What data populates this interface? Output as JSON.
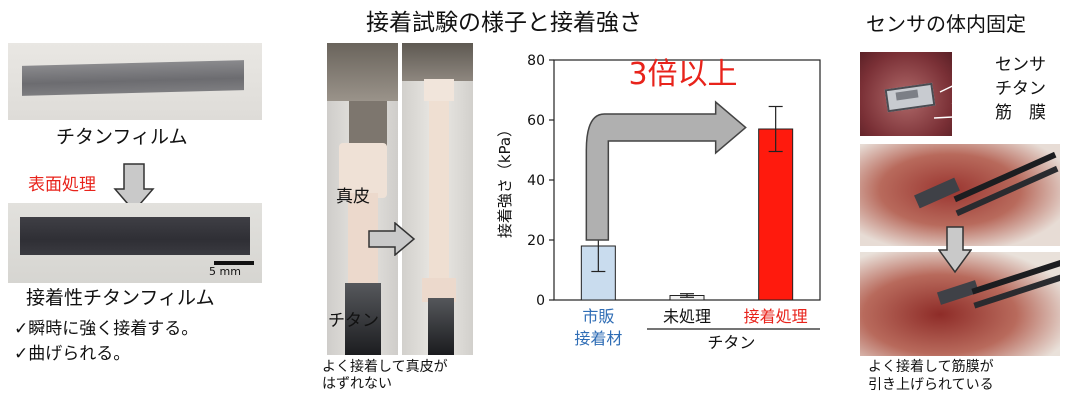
{
  "left_panel": {
    "film_label": "チタンフィルム",
    "treatment_label": "表面処理",
    "scale_label": "5 mm",
    "adhesive_film_label": "接着性チタンフィルム",
    "bullet_1": "✓瞬時に強く接着する。",
    "bullet_2": "✓曲げられる。"
  },
  "center_panel": {
    "title": "接着試験の様子と接着強さ",
    "dermis_label": "真皮",
    "titanium_label": "チタン",
    "caption_line1": "よく接着して真皮が",
    "caption_line2": "はずれない"
  },
  "right_panel": {
    "title": "センサの体内固定",
    "sensor_label": "センサ",
    "titanium_label": "チタン",
    "fascia_label": "筋　膜",
    "caption_line1": "よく接着して筋膜が",
    "caption_line2": "引き上げられている"
  },
  "chart_data": {
    "type": "bar",
    "ylabel": "接着強さ（kPa）",
    "ylim": [
      0,
      80
    ],
    "yticks": [
      0,
      20,
      40,
      60,
      80
    ],
    "categories": [
      {
        "line1": "市販",
        "line2": "接着材",
        "color": "#2f6db5"
      },
      {
        "line1": "未処理",
        "line2": "",
        "color": "#111111"
      },
      {
        "line1": "接着処理",
        "line2": "",
        "color": "#e8231b"
      }
    ],
    "group_label": "チタン",
    "values": [
      18,
      1.5,
      57
    ],
    "errors": [
      8.5,
      0.6,
      7.5
    ],
    "bar_colors": [
      "#c9dcee",
      "#f2f2f2",
      "#ff1a0d"
    ],
    "annotation": "3倍以上",
    "annotation_color": "#e8231b"
  },
  "colors": {
    "accent_red": "#e8231b",
    "arrow_gray": "#b0b0b0"
  }
}
